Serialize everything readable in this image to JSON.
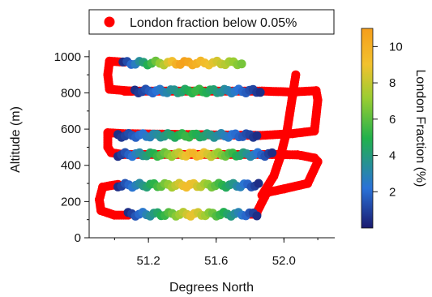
{
  "chart_data": {
    "type": "scatter",
    "xlabel": "Degrees North",
    "ylabel": "Altitude (m)",
    "xlim": [
      50.85,
      52.3
    ],
    "ylim": [
      0,
      1080
    ],
    "xticks": [
      51.2,
      51.6,
      52.0
    ],
    "xtick_labels": [
      "51.2",
      "51.6",
      "52.0"
    ],
    "yticks": [
      0,
      200,
      400,
      600,
      800,
      1000
    ],
    "ytick_labels": [
      "0",
      "200",
      "400",
      "600",
      "800",
      "1000"
    ],
    "grid": false,
    "legend": {
      "position": "top",
      "label": "London fraction below 0.05%",
      "marker_color": "#ff0000"
    },
    "colorbar": {
      "label": "London Fraction (%)",
      "range": [
        0,
        11
      ],
      "ticks": [
        2,
        4,
        6,
        8,
        10
      ],
      "tick_labels": [
        "2",
        "4",
        "6",
        "8",
        "10"
      ],
      "colormap": "blue-green-yellow-orange"
    },
    "segments": [
      {
        "type": "gradient",
        "x_start": 51.05,
        "x_end": 51.75,
        "y": 965,
        "c_start": 0.5,
        "c_end": 6.5,
        "c_mid": 11,
        "n": 30
      },
      {
        "type": "gradient",
        "x_start": 51.12,
        "x_end": 51.86,
        "y": 810,
        "c_start": 0.5,
        "c_end": 0.5,
        "c_mid": 5.5,
        "n": 36
      },
      {
        "type": "gradient",
        "x_start": 51.02,
        "x_end": 51.84,
        "y": 565,
        "c_start": 0.5,
        "c_end": 0.5,
        "c_mid": 5.5,
        "n": 40
      },
      {
        "type": "gradient",
        "x_start": 51.02,
        "x_end": 51.93,
        "y": 460,
        "c_start": 0.5,
        "c_end": 0.5,
        "c_mid": 10,
        "n": 44
      },
      {
        "type": "gradient",
        "x_start": 51.02,
        "x_end": 51.85,
        "y": 290,
        "c_start": 0.5,
        "c_end": 0.5,
        "c_mid": 9.5,
        "n": 40
      },
      {
        "type": "gradient",
        "x_start": 51.08,
        "x_end": 51.84,
        "y": 130,
        "c_start": 0.5,
        "c_end": 0.5,
        "c_mid": 9,
        "n": 36
      }
    ],
    "red_track": [
      [
        51.06,
        970
      ],
      [
        50.97,
        975
      ],
      [
        50.96,
        900
      ],
      [
        50.97,
        820
      ],
      [
        51.1,
        810
      ],
      [
        51.06,
        810
      ],
      [
        51.87,
        810
      ],
      [
        52.05,
        805
      ],
      [
        52.19,
        812
      ],
      [
        52.2,
        760
      ],
      [
        52.18,
        590
      ],
      [
        52.05,
        575
      ],
      [
        51.86,
        565
      ],
      [
        51.05,
        575
      ],
      [
        50.96,
        580
      ],
      [
        50.96,
        500
      ],
      [
        50.98,
        470
      ],
      [
        51.05,
        460
      ],
      [
        51.93,
        460
      ],
      [
        52.08,
        458
      ],
      [
        52.1,
        455
      ],
      [
        52.18,
        440
      ],
      [
        52.2,
        420
      ],
      [
        52.14,
        300
      ],
      [
        52.0,
        270
      ],
      [
        51.9,
        250
      ],
      [
        51.84,
        140
      ],
      [
        51.84,
        130
      ],
      [
        51.8,
        130
      ],
      [
        51.02,
        295
      ],
      [
        50.93,
        280
      ],
      [
        50.91,
        210
      ],
      [
        50.92,
        150
      ],
      [
        51.0,
        125
      ],
      [
        51.08,
        125
      ],
      [
        51.87,
        235
      ],
      [
        51.94,
        340
      ],
      [
        51.98,
        450
      ],
      [
        52.02,
        600
      ],
      [
        52.05,
        780
      ],
      [
        52.07,
        900
      ]
    ]
  }
}
